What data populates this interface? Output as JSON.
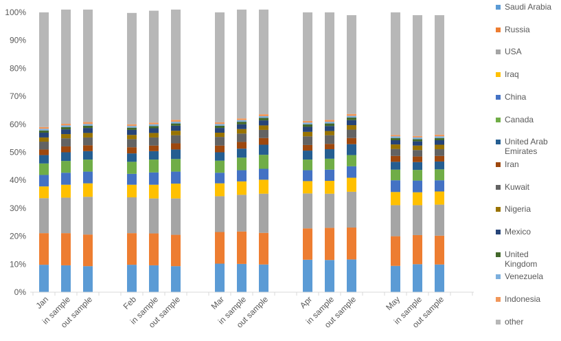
{
  "chart_data": {
    "type": "bar",
    "stacked": true,
    "percent": true,
    "title": "",
    "xlabel": "",
    "ylabel": "",
    "ylim": [
      0,
      100
    ],
    "yticks": [
      "0%",
      "10%",
      "20%",
      "30%",
      "40%",
      "50%",
      "60%",
      "70%",
      "80%",
      "90%",
      "100%"
    ],
    "groups": [
      "Jan",
      "Feb",
      "Mar",
      "Apr",
      "May"
    ],
    "categories": [
      "Jan",
      "in sample",
      "out sample",
      "Feb",
      "in sample",
      "out sample",
      "Mar",
      "in sample",
      "out sample",
      "Apr",
      "in sample",
      "out sample",
      "May",
      "in sample",
      "out sample"
    ],
    "series": [
      {
        "name": "Saudi Arabia",
        "color": "#5B9BD5",
        "values": [
          9.8,
          9.6,
          9.3,
          9.8,
          9.6,
          9.3,
          10.2,
          10.1,
          9.9,
          11.6,
          11.5,
          11.7,
          9.4,
          10.0,
          9.9
        ]
      },
      {
        "name": "Russia",
        "color": "#ED7D31",
        "values": [
          11.3,
          11.5,
          11.3,
          11.3,
          11.4,
          11.2,
          11.3,
          11.6,
          11.3,
          11.2,
          11.5,
          11.4,
          10.6,
          10.4,
          10.3
        ]
      },
      {
        "name": "USA",
        "color": "#A5A5A5",
        "values": [
          12.5,
          12.7,
          13.5,
          12.8,
          12.5,
          13.0,
          12.8,
          13.1,
          14.0,
          12.5,
          12.2,
          12.8,
          11.1,
          10.7,
          11.1
        ]
      },
      {
        "name": "Iraq",
        "color": "#FFC000",
        "values": [
          4.2,
          4.6,
          4.8,
          4.5,
          4.9,
          5.3,
          4.6,
          4.8,
          5.0,
          4.4,
          4.6,
          5.0,
          4.7,
          4.6,
          4.7
        ]
      },
      {
        "name": "China",
        "color": "#4472C4",
        "values": [
          4.1,
          4.3,
          4.2,
          3.9,
          4.4,
          4.3,
          3.8,
          4.0,
          3.9,
          3.9,
          4.0,
          4.1,
          4.2,
          4.2,
          4.0
        ]
      },
      {
        "name": "Canada",
        "color": "#70AD47",
        "values": [
          4.1,
          4.2,
          4.3,
          4.3,
          4.6,
          4.5,
          4.3,
          4.5,
          5.0,
          3.8,
          3.9,
          4.0,
          3.8,
          3.8,
          3.9
        ]
      },
      {
        "name": "United Arab Emirates",
        "color": "#255E91",
        "values": [
          3.0,
          3.1,
          3.0,
          3.0,
          3.0,
          3.4,
          3.0,
          3.2,
          3.6,
          3.2,
          3.4,
          3.9,
          2.8,
          2.8,
          2.8
        ]
      },
      {
        "name": "Iran",
        "color": "#9E480E",
        "values": [
          2.0,
          2.1,
          2.1,
          2.2,
          2.0,
          2.2,
          2.4,
          2.4,
          2.4,
          2.0,
          1.9,
          2.2,
          2.1,
          2.0,
          2.0
        ]
      },
      {
        "name": "Kuwait",
        "color": "#636363",
        "values": [
          2.8,
          2.9,
          2.8,
          2.9,
          2.9,
          2.9,
          3.1,
          3.0,
          2.9,
          3.1,
          3.1,
          3.0,
          2.5,
          2.3,
          2.4
        ]
      },
      {
        "name": "Nigeria",
        "color": "#997300",
        "values": [
          1.5,
          1.5,
          1.6,
          1.5,
          1.6,
          1.6,
          1.5,
          1.6,
          1.6,
          1.6,
          1.5,
          1.6,
          1.6,
          1.6,
          1.6
        ]
      },
      {
        "name": "Mexico",
        "color": "#264478",
        "values": [
          1.7,
          1.7,
          1.8,
          1.8,
          1.7,
          1.8,
          1.7,
          1.7,
          1.8,
          1.8,
          1.8,
          1.8,
          1.5,
          1.5,
          1.6
        ]
      },
      {
        "name": "United Kingdom",
        "color": "#43682B",
        "values": [
          0.8,
          0.8,
          0.8,
          0.8,
          0.8,
          0.8,
          0.8,
          0.9,
          0.9,
          0.9,
          0.9,
          0.9,
          0.8,
          0.8,
          0.8
        ]
      },
      {
        "name": "Venezuela",
        "color": "#7CAFDD",
        "values": [
          0.6,
          0.6,
          0.6,
          0.6,
          0.6,
          0.6,
          0.6,
          0.6,
          0.6,
          0.6,
          0.6,
          0.6,
          0.6,
          0.6,
          0.6
        ]
      },
      {
        "name": "Indonesia",
        "color": "#F1975A",
        "values": [
          0.6,
          0.6,
          0.7,
          0.6,
          0.6,
          0.7,
          0.6,
          0.6,
          0.7,
          0.6,
          0.7,
          0.7,
          0.5,
          0.5,
          0.6
        ]
      },
      {
        "name": "other",
        "color": "#B7B7B7",
        "values": [
          41.0,
          40.8,
          40.2,
          39.8,
          40.0,
          39.4,
          39.3,
          38.9,
          37.4,
          38.8,
          38.4,
          35.3,
          43.8,
          43.2,
          42.7
        ]
      }
    ],
    "grid": false,
    "legend_position": "right"
  }
}
